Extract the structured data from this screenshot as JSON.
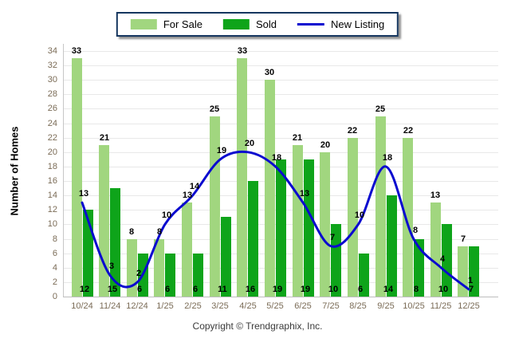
{
  "ylabel": "Number of Homes",
  "footer": "Copyright © Trendgraphix, Inc.",
  "colors": {
    "for_sale": "#a1d67f",
    "sold": "#0ea41a",
    "new_listing": "#0a0acf",
    "grid": "#e8e8e8",
    "tick_text": "#7b6c57",
    "legend_border": "#15365f"
  },
  "legend": {
    "items": [
      {
        "id": "for-sale",
        "label": "For Sale",
        "type": "swatch",
        "color": "#a1d67f"
      },
      {
        "id": "sold",
        "label": "Sold",
        "type": "swatch",
        "color": "#0ea41a"
      },
      {
        "id": "new-listing",
        "label": "New Listing",
        "type": "line",
        "color": "#0a0acf"
      }
    ]
  },
  "chart_data": {
    "type": "bar",
    "subtype": "grouped bars with smoothed overlay line",
    "categories": [
      "10/24",
      "11/24",
      "12/24",
      "1/25",
      "2/25",
      "3/25",
      "4/25",
      "5/25",
      "6/25",
      "7/25",
      "8/25",
      "9/25",
      "10/25",
      "11/25",
      "12/25"
    ],
    "series": [
      {
        "name": "For Sale",
        "type": "bar",
        "color": "#a1d67f",
        "values": [
          33,
          21,
          8,
          8,
          13,
          25,
          33,
          30,
          21,
          20,
          22,
          25,
          22,
          13,
          7
        ],
        "label_position": "above-bar"
      },
      {
        "name": "Sold",
        "type": "bar",
        "color": "#0ea41a",
        "values": [
          12,
          15,
          6,
          6,
          6,
          11,
          16,
          19,
          19,
          10,
          6,
          14,
          8,
          10,
          7
        ],
        "label_position": "axis-bottom"
      },
      {
        "name": "New Listing",
        "type": "line",
        "color": "#0a0acf",
        "values": [
          13,
          3,
          2,
          10,
          14,
          19,
          20,
          18,
          13,
          7,
          10,
          18,
          8,
          4,
          1
        ],
        "label_position": "above-point"
      }
    ],
    "title": "",
    "xlabel": "",
    "ylabel": "Number of Homes",
    "ylim": [
      0,
      34
    ],
    "ytick_step": 2,
    "grid": true,
    "legend_position": "top-center",
    "footnote": "Copyright © Trendgraphix, Inc."
  }
}
